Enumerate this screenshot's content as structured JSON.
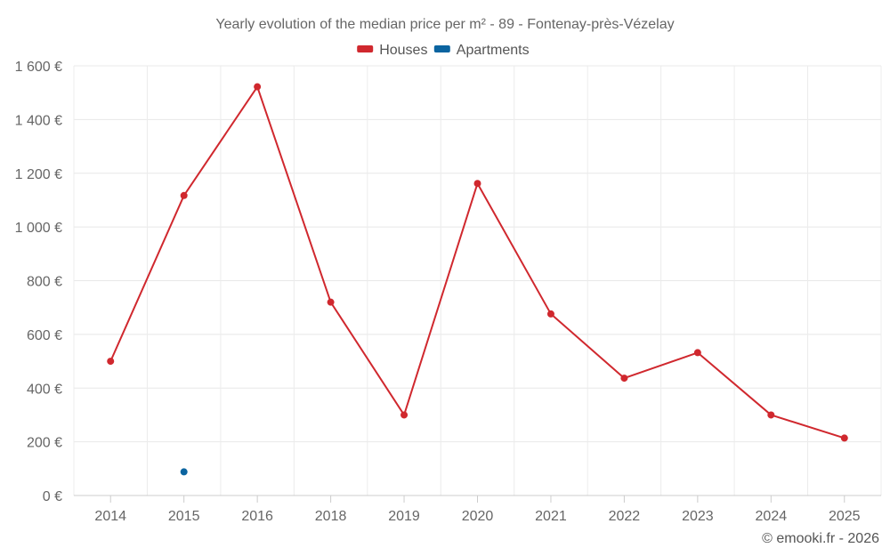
{
  "chart_data": {
    "type": "line",
    "title": "Yearly evolution of the median price per m² - 89 - Fontenay-près-Vézelay",
    "categories": [
      "2014",
      "2015",
      "2016",
      "2018",
      "2019",
      "2020",
      "2021",
      "2022",
      "2023",
      "2024",
      "2025"
    ],
    "series": [
      {
        "name": "Houses",
        "color": "#d0282e",
        "values": [
          500,
          1117,
          1522,
          720,
          300,
          1162,
          676,
          437,
          532,
          300,
          214
        ]
      },
      {
        "name": "Apartments",
        "color": "#0b64a0",
        "values": [
          null,
          88,
          null,
          null,
          null,
          null,
          null,
          null,
          null,
          null,
          null
        ]
      }
    ],
    "y_ticks": [
      "0 €",
      "200 €",
      "400 €",
      "600 €",
      "800 €",
      "1 000 €",
      "1 200 €",
      "1 400 €",
      "1 600 €"
    ],
    "ylim": [
      0,
      1600
    ],
    "xlabel": "",
    "ylabel": "",
    "grid": true,
    "legend_position": "top-center"
  },
  "credit": "© emooki.fr - 2026"
}
